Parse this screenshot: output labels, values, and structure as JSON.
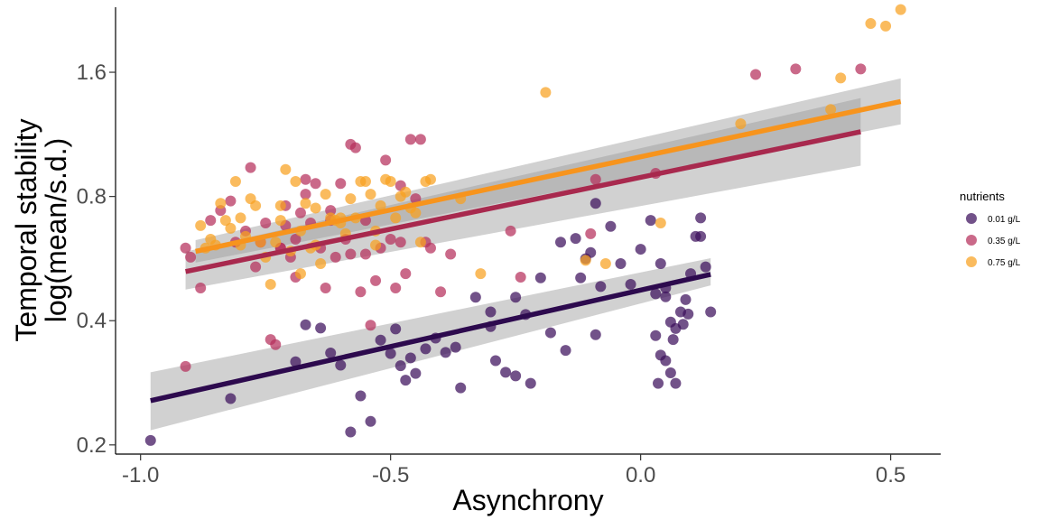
{
  "chart_data": {
    "type": "scatter",
    "xlabel": "Asynchrony",
    "ylabel_lines": [
      "Temporal stability",
      "log(mean/s.d.)"
    ],
    "y_scale": "log",
    "xlim": [
      -1.05,
      0.6
    ],
    "ylim": [
      0.19,
      2.3
    ],
    "x_ticks": [
      -1.0,
      -0.5,
      0.0,
      0.5
    ],
    "x_tick_labels": [
      "-1.0",
      "-0.5",
      "0.0",
      "0.5"
    ],
    "y_ticks": [
      0.2,
      0.4,
      0.8,
      1.6
    ],
    "y_tick_labels": [
      "0.2",
      "0.4",
      "0.8",
      "1.6"
    ],
    "grid": false,
    "legend": {
      "title": "nutrients",
      "position": "right"
    },
    "series": [
      {
        "name": "0.01 g/L",
        "color": "#3b0f5c",
        "fit_color": "#2d0a4e",
        "fit": {
          "x": [
            -0.98,
            0.14
          ],
          "y": [
            0.256,
            0.518
          ],
          "ci_lower": [
            0.217,
            0.487
          ],
          "ci_upper": [
            0.3,
            0.567
          ]
        },
        "points": [
          [
            -0.98,
            0.205
          ],
          [
            -0.82,
            0.259
          ],
          [
            -0.69,
            0.318
          ],
          [
            -0.67,
            0.391
          ],
          [
            -0.64,
            0.384
          ],
          [
            -0.62,
            0.334
          ],
          [
            -0.6,
            0.312
          ],
          [
            -0.58,
            0.215
          ],
          [
            -0.56,
            0.263
          ],
          [
            -0.54,
            0.228
          ],
          [
            -0.52,
            0.359
          ],
          [
            -0.5,
            0.333
          ],
          [
            -0.49,
            0.382
          ],
          [
            -0.47,
            0.287
          ],
          [
            -0.46,
            0.325
          ],
          [
            -0.45,
            0.298
          ],
          [
            -0.43,
            0.342
          ],
          [
            -0.41,
            0.363
          ],
          [
            -0.39,
            0.335
          ],
          [
            -0.37,
            0.345
          ],
          [
            -0.36,
            0.275
          ],
          [
            -0.33,
            0.456
          ],
          [
            -0.3,
            0.42
          ],
          [
            -0.29,
            0.32
          ],
          [
            -0.27,
            0.3
          ],
          [
            -0.25,
            0.294
          ],
          [
            -0.23,
            0.414
          ],
          [
            -0.22,
            0.282
          ],
          [
            -0.2,
            0.508
          ],
          [
            -0.18,
            0.374
          ],
          [
            -0.15,
            0.339
          ],
          [
            -0.13,
            0.633
          ],
          [
            -0.12,
            0.508
          ],
          [
            -0.1,
            0.585
          ],
          [
            -0.09,
            0.37
          ],
          [
            -0.08,
            0.484
          ],
          [
            -0.06,
            0.677
          ],
          [
            -0.04,
            0.55
          ],
          [
            -0.02,
            0.49
          ],
          [
            0.0,
            0.596
          ],
          [
            0.02,
            0.7
          ],
          [
            0.03,
            0.465
          ],
          [
            0.04,
            0.55
          ],
          [
            0.05,
            0.48
          ],
          [
            0.06,
            0.397
          ],
          [
            0.07,
            0.383
          ],
          [
            0.08,
            0.42
          ],
          [
            0.09,
            0.45
          ],
          [
            0.1,
            0.52
          ],
          [
            0.11,
            0.64
          ],
          [
            0.12,
            0.64
          ],
          [
            0.13,
            0.54
          ],
          [
            0.14,
            0.42
          ],
          [
            0.04,
            0.33
          ],
          [
            0.05,
            0.32
          ],
          [
            0.06,
            0.299
          ],
          [
            0.035,
            0.282
          ],
          [
            0.065,
            0.36
          ],
          [
            0.085,
            0.392
          ],
          [
            0.095,
            0.415
          ],
          [
            -0.3,
            0.387
          ],
          [
            -0.25,
            0.456
          ],
          [
            -0.11,
            0.565
          ],
          [
            0.07,
            0.282
          ],
          [
            0.03,
            0.368
          ],
          [
            -0.48,
            0.311
          ],
          [
            -0.09,
            0.77
          ],
          [
            0.12,
            0.71
          ],
          [
            0.05,
            0.457
          ],
          [
            -0.16,
            0.62
          ]
        ]
      },
      {
        "name": "0.35 g/L",
        "color": "#b52f5b",
        "fit_color": "#a8294e",
        "fit": {
          "x": [
            -0.91,
            0.44
          ],
          "y": [
            0.526,
            1.148
          ],
          "ci_lower": [
            0.476,
            0.95
          ],
          "ci_upper": [
            0.588,
            1.385
          ]
        },
        "points": [
          [
            -0.91,
            0.31
          ],
          [
            -0.91,
            0.6
          ],
          [
            -0.9,
            0.57
          ],
          [
            -0.88,
            0.48
          ],
          [
            -0.86,
            0.7
          ],
          [
            -0.84,
            0.74
          ],
          [
            -0.82,
            0.78
          ],
          [
            -0.81,
            0.62
          ],
          [
            -0.79,
            0.66
          ],
          [
            -0.78,
            0.94
          ],
          [
            -0.77,
            0.54
          ],
          [
            -0.75,
            0.69
          ],
          [
            -0.74,
            0.36
          ],
          [
            -0.73,
            0.35
          ],
          [
            -0.72,
            0.6
          ],
          [
            -0.71,
            0.68
          ],
          [
            -0.7,
            0.57
          ],
          [
            -0.69,
            0.51
          ],
          [
            -0.68,
            0.73
          ],
          [
            -0.67,
            0.81
          ],
          [
            -0.66,
            0.69
          ],
          [
            -0.65,
            0.86
          ],
          [
            -0.64,
            0.6
          ],
          [
            -0.63,
            0.48
          ],
          [
            -0.62,
            0.74
          ],
          [
            -0.61,
            0.57
          ],
          [
            -0.6,
            0.86
          ],
          [
            -0.59,
            0.63
          ],
          [
            -0.58,
            1.07
          ],
          [
            -0.57,
            1.05
          ],
          [
            -0.56,
            0.47
          ],
          [
            -0.55,
            0.58
          ],
          [
            -0.54,
            0.39
          ],
          [
            -0.53,
            0.5
          ],
          [
            -0.52,
            0.6
          ],
          [
            -0.51,
            0.98
          ],
          [
            -0.5,
            0.63
          ],
          [
            -0.49,
            0.48
          ],
          [
            -0.48,
            0.85
          ],
          [
            -0.47,
            0.52
          ],
          [
            -0.46,
            1.1
          ],
          [
            -0.45,
            0.79
          ],
          [
            -0.44,
            1.1
          ],
          [
            -0.43,
            0.62
          ],
          [
            -0.42,
            0.6
          ],
          [
            -0.4,
            0.47
          ],
          [
            -0.38,
            0.58
          ],
          [
            -0.26,
            0.66
          ],
          [
            -0.24,
            0.51
          ],
          [
            -0.1,
            0.65
          ],
          [
            -0.09,
            0.88
          ],
          [
            0.03,
            0.91
          ],
          [
            0.23,
            1.58
          ],
          [
            0.31,
            1.63
          ],
          [
            0.44,
            1.63
          ],
          [
            -0.71,
            0.76
          ],
          [
            -0.62,
            0.7
          ],
          [
            -0.55,
            0.7
          ],
          [
            -0.67,
            0.88
          ],
          [
            -0.76,
            0.62
          ],
          [
            -0.69,
            0.63
          ],
          [
            -0.48,
            0.62
          ],
          [
            -0.58,
            0.58
          ],
          [
            -0.72,
            0.6
          ]
        ]
      },
      {
        "name": "0.75 g/L",
        "color": "#f8a120",
        "fit_color": "#f7941d",
        "fit": {
          "x": [
            -0.89,
            0.52
          ],
          "y": [
            0.589,
            1.359
          ],
          "ci_lower": [
            0.553,
            1.196
          ],
          "ci_upper": [
            0.627,
            1.546
          ]
        },
        "points": [
          [
            -0.88,
            0.68
          ],
          [
            -0.87,
            0.6
          ],
          [
            -0.86,
            0.63
          ],
          [
            -0.85,
            0.61
          ],
          [
            -0.84,
            0.77
          ],
          [
            -0.83,
            0.7
          ],
          [
            -0.82,
            0.67
          ],
          [
            -0.81,
            0.87
          ],
          [
            -0.8,
            0.71
          ],
          [
            -0.79,
            0.64
          ],
          [
            -0.78,
            0.79
          ],
          [
            -0.77,
            0.76
          ],
          [
            -0.76,
            0.62
          ],
          [
            -0.75,
            0.57
          ],
          [
            -0.74,
            0.49
          ],
          [
            -0.73,
            0.62
          ],
          [
            -0.72,
            0.76
          ],
          [
            -0.71,
            0.93
          ],
          [
            -0.7,
            0.59
          ],
          [
            -0.69,
            0.87
          ],
          [
            -0.68,
            0.52
          ],
          [
            -0.67,
            0.77
          ],
          [
            -0.66,
            0.6
          ],
          [
            -0.65,
            0.61
          ],
          [
            -0.64,
            0.55
          ],
          [
            -0.63,
            0.81
          ],
          [
            -0.62,
            0.71
          ],
          [
            -0.61,
            0.7
          ],
          [
            -0.6,
            0.71
          ],
          [
            -0.59,
            0.65
          ],
          [
            -0.58,
            0.79
          ],
          [
            -0.57,
            0.71
          ],
          [
            -0.56,
            0.87
          ],
          [
            -0.55,
            0.87
          ],
          [
            -0.54,
            0.81
          ],
          [
            -0.53,
            0.66
          ],
          [
            -0.52,
            0.76
          ],
          [
            -0.51,
            0.88
          ],
          [
            -0.5,
            0.87
          ],
          [
            -0.49,
            0.71
          ],
          [
            -0.48,
            0.8
          ],
          [
            -0.47,
            0.82
          ],
          [
            -0.46,
            0.75
          ],
          [
            -0.45,
            0.73
          ],
          [
            -0.44,
            0.62
          ],
          [
            -0.43,
            0.87
          ],
          [
            -0.42,
            0.88
          ],
          [
            -0.32,
            0.52
          ],
          [
            -0.19,
            1.43
          ],
          [
            -0.07,
            0.55
          ],
          [
            0.04,
            0.69
          ],
          [
            0.4,
            1.55
          ],
          [
            0.46,
            2.1
          ],
          [
            0.49,
            2.07
          ],
          [
            0.52,
            2.27
          ],
          [
            -0.72,
            0.7
          ],
          [
            -0.6,
            0.69
          ],
          [
            -0.65,
            0.75
          ],
          [
            -0.68,
            0.66
          ],
          [
            -0.8,
            0.61
          ],
          [
            -0.53,
            0.61
          ],
          [
            -0.36,
            0.79
          ],
          [
            -0.11,
            0.56
          ],
          [
            0.38,
            1.3
          ],
          [
            0.2,
            1.2
          ]
        ]
      }
    ]
  }
}
